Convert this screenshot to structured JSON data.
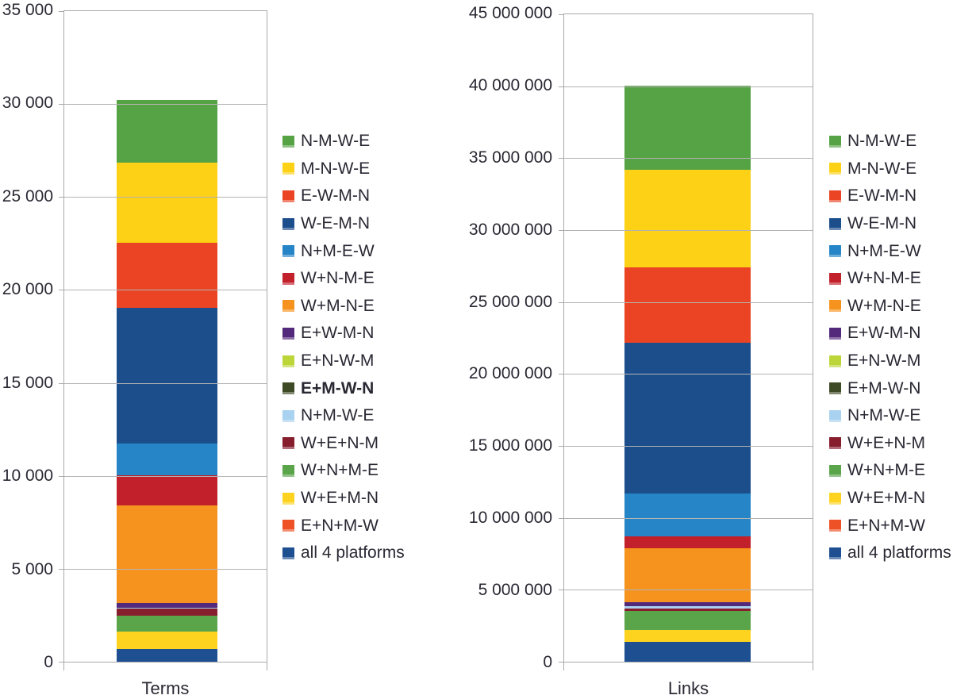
{
  "figure": {
    "background": "#FFFFFF",
    "text_color": "#2A2833",
    "gridline_color": "#B3B3B3",
    "axis_color": "#A9A9A9"
  },
  "chart_data": [
    {
      "type": "bar",
      "title": "",
      "xlabel": "Terms",
      "categories": [
        "Terms"
      ],
      "ylim": [
        0,
        35000
      ],
      "ytick_step": 5000,
      "ytick_labels": [
        "35 000",
        "30 000",
        "25 000",
        "20 000",
        "15 000",
        "10 000",
        "5 000",
        "0"
      ],
      "grid": true,
      "legend_position": "right",
      "stacking": "top-to-bottom follows legend order",
      "total": 30240,
      "series": [
        {
          "name": "N-M-W-E",
          "color": "#56A345",
          "value": 3400
        },
        {
          "name": "M-N-W-E",
          "color": "#FCD116",
          "value": 4300
        },
        {
          "name": "E-W-M-N",
          "color": "#EA4424",
          "value": 3500
        },
        {
          "name": "W-E-M-N",
          "color": "#1C4E8C",
          "value": 7300
        },
        {
          "name": "N+M-E-W",
          "color": "#2585C6",
          "value": 1700
        },
        {
          "name": "W+N-M-E",
          "color": "#C2212B",
          "value": 1650
        },
        {
          "name": "W+M-N-E",
          "color": "#F6931E",
          "value": 5250
        },
        {
          "name": "E+W-M-N",
          "color": "#53297B",
          "value": 220
        },
        {
          "name": "E+N-W-M",
          "color": "#BCD63A",
          "value": 0
        },
        {
          "name": "E+M-W-N",
          "color": "#3E4A26",
          "value": 0,
          "bold": true
        },
        {
          "name": "N+M-W-E",
          "color": "#A8D2F0",
          "value": 80
        },
        {
          "name": "W+E+N-M",
          "color": "#861E2E",
          "value": 360
        },
        {
          "name": "W+N+M-E",
          "color": "#5AA44A",
          "value": 850
        },
        {
          "name": "W+E+M-N",
          "color": "#FDD31F",
          "value": 930
        },
        {
          "name": "E+N+M-W",
          "color": "#EF5126",
          "value": 0
        },
        {
          "name": "all 4 platforms",
          "color": "#1D4F91",
          "value": 700
        }
      ]
    },
    {
      "type": "bar",
      "title": "",
      "xlabel": "Links",
      "categories": [
        "Links"
      ],
      "ylim": [
        0,
        45000000
      ],
      "ytick_step": 5000000,
      "ytick_labels": [
        "45 000 000",
        "40 000 000",
        "35 000 000",
        "30 000 000",
        "25 000 000",
        "20 000 000",
        "15 000 000",
        "10 000 000",
        "5 000 000",
        "0"
      ],
      "grid": true,
      "legend_position": "right",
      "stacking": "top-to-bottom follows legend order",
      "total": 40030000,
      "series": [
        {
          "name": "N-M-W-E",
          "color": "#56A345",
          "value": 5850000
        },
        {
          "name": "M-N-W-E",
          "color": "#FCD116",
          "value": 6750000
        },
        {
          "name": "E-W-M-N",
          "color": "#EA4424",
          "value": 5250000
        },
        {
          "name": "W-E-M-N",
          "color": "#1C4E8C",
          "value": 10500000
        },
        {
          "name": "N+M-E-W",
          "color": "#2585C6",
          "value": 2950000
        },
        {
          "name": "W+N-M-E",
          "color": "#C2212B",
          "value": 820000
        },
        {
          "name": "W+M-N-E",
          "color": "#F6931E",
          "value": 3800000
        },
        {
          "name": "E+W-M-N",
          "color": "#53297B",
          "value": 260000
        },
        {
          "name": "E+N-W-M",
          "color": "#BCD63A",
          "value": 0
        },
        {
          "name": "E+M-W-N",
          "color": "#3E4A26",
          "value": 0
        },
        {
          "name": "N+M-W-E",
          "color": "#A8D2F0",
          "value": 140000
        },
        {
          "name": "W+E+N-M",
          "color": "#861E2E",
          "value": 160000
        },
        {
          "name": "W+N+M-E",
          "color": "#5AA44A",
          "value": 1330000
        },
        {
          "name": "W+E+M-N",
          "color": "#FDD31F",
          "value": 820000
        },
        {
          "name": "E+N+M-W",
          "color": "#EF5126",
          "value": 0
        },
        {
          "name": "all 4 platforms",
          "color": "#1D4F91",
          "value": 1400000
        }
      ]
    }
  ]
}
